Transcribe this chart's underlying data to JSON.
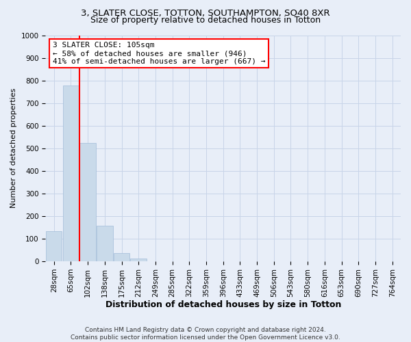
{
  "title1": "3, SLATER CLOSE, TOTTON, SOUTHAMPTON, SO40 8XR",
  "title2": "Size of property relative to detached houses in Totton",
  "xlabel": "Distribution of detached houses by size in Totton",
  "ylabel": "Number of detached properties",
  "bar_values": [
    133,
    778,
    524,
    158,
    36,
    13,
    0,
    0,
    0,
    0,
    0,
    0,
    0,
    0,
    0,
    0,
    0,
    0,
    0,
    0,
    0
  ],
  "x_labels": [
    "28sqm",
    "65sqm",
    "102sqm",
    "138sqm",
    "175sqm",
    "212sqm",
    "249sqm",
    "285sqm",
    "322sqm",
    "359sqm",
    "396sqm",
    "433sqm",
    "469sqm",
    "506sqm",
    "543sqm",
    "580sqm",
    "616sqm",
    "653sqm",
    "690sqm",
    "727sqm",
    "764sqm"
  ],
  "bar_color": "#c9daea",
  "bar_edgecolor": "#a0bcd8",
  "grid_color": "#c8d4e8",
  "vline_color": "red",
  "vline_position": 1.5,
  "annotation_text": "3 SLATER CLOSE: 105sqm\n← 58% of detached houses are smaller (946)\n41% of semi-detached houses are larger (667) →",
  "annotation_box_facecolor": "white",
  "annotation_box_edgecolor": "red",
  "ylim": [
    0,
    1000
  ],
  "yticks": [
    0,
    100,
    200,
    300,
    400,
    500,
    600,
    700,
    800,
    900,
    1000
  ],
  "footnote": "Contains HM Land Registry data © Crown copyright and database right 2024.\nContains public sector information licensed under the Open Government Licence v3.0.",
  "bg_color": "#e8eef8",
  "plot_bg_color": "#e8eef8",
  "title1_fontsize": 9.5,
  "title2_fontsize": 9.0,
  "xlabel_fontsize": 9.0,
  "ylabel_fontsize": 8.0,
  "tick_fontsize": 7.5,
  "annotation_fontsize": 8.0
}
